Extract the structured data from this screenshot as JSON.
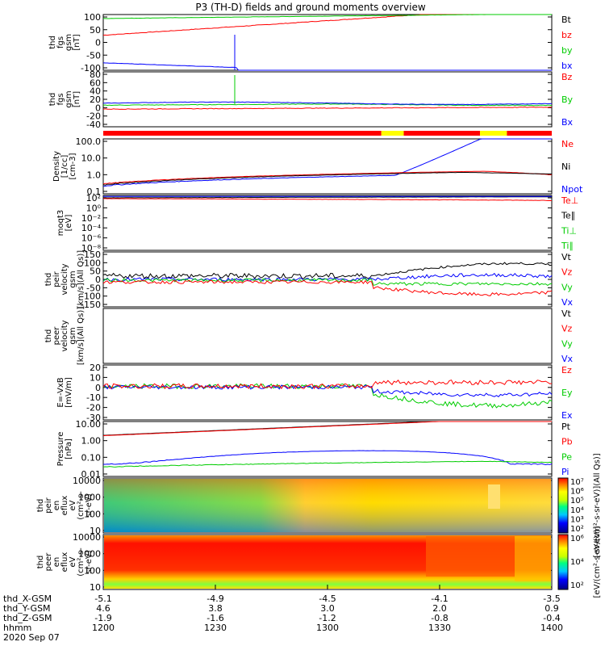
{
  "title": "P3 (TH-D) fields and ground moments overview",
  "colors": {
    "red": "#ff0000",
    "green": "#00cc00",
    "blue": "#0000ff",
    "black": "#000000",
    "yellow": "#ffff00"
  },
  "chart_data": {
    "type": "line",
    "time_range_hhmm": [
      "1200",
      "1400"
    ],
    "xaxis": {
      "rows": [
        {
          "label": "thd_X-GSM",
          "values": [
            "-5.1",
            "-4.9",
            "-4.5",
            "-4.1",
            "-3.5"
          ]
        },
        {
          "label": "thd_Y-GSM",
          "values": [
            "4.6",
            "3.8",
            "3.0",
            "2.0",
            "0.9"
          ]
        },
        {
          "label": "thd_Z-GSM",
          "values": [
            "-1.9",
            "-1.6",
            "-1.2",
            "-0.8",
            "-0.4"
          ]
        },
        {
          "label": "hhmm",
          "values": [
            "1200",
            "1230",
            "1300",
            "1330",
            "1400"
          ]
        }
      ],
      "date": "2020 Sep 07"
    },
    "panels": [
      {
        "id": "fgs_gsm",
        "ylabel": [
          "thd",
          "fgs",
          "gsm",
          "[nT]"
        ],
        "yticks": [
          "100",
          "50",
          "0",
          "-50",
          "-100"
        ],
        "ylim": [
          -100,
          110
        ],
        "legend": [
          {
            "name": "Bt",
            "color": "#000000"
          },
          {
            "name": "bz",
            "color": "#ff0000"
          },
          {
            "name": "by",
            "color": "#00cc00"
          },
          {
            "name": "bx",
            "color": "#0000ff"
          }
        ]
      },
      {
        "id": "fgs_dsl",
        "ylabel": [
          "thd",
          "fgs",
          "gsm",
          "[nT]"
        ],
        "yticks": [
          "80",
          "60",
          "40",
          "20",
          "0",
          "-20",
          "-40"
        ],
        "ylim": [
          -50,
          90
        ],
        "legend": [
          {
            "name": "Bz",
            "color": "#ff0000"
          },
          {
            "name": "By",
            "color": "#00cc00"
          },
          {
            "name": "Bx",
            "color": "#0000ff"
          }
        ]
      },
      {
        "id": "density",
        "ylabel": [
          "Density",
          "[1/cc]",
          "[cm-3]"
        ],
        "yticks": [
          "100.0",
          "10.0",
          "1.0",
          "0.1"
        ],
        "scale": "log",
        "ylim": [
          0.1,
          200
        ],
        "legend": [
          {
            "name": "Ne",
            "color": "#ff0000"
          },
          {
            "name": "Ni",
            "color": "#000000"
          },
          {
            "name": "Npot",
            "color": "#0000ff"
          }
        ]
      },
      {
        "id": "temperature",
        "ylabel": [
          "moqt3",
          "[eV]"
        ],
        "yticks": [
          "10²",
          "10⁰",
          "10⁻²",
          "10⁻⁴",
          "10⁻⁶",
          "10⁻⁸"
        ],
        "scale": "log",
        "legend": [
          {
            "name": "Te⊥",
            "color": "#ff0000"
          },
          {
            "name": "Te∥",
            "color": "#000000"
          },
          {
            "name": "Ti⊥",
            "color": "#00cc00"
          },
          {
            "name": "Ti∥",
            "color": "#00cc00"
          }
        ]
      },
      {
        "id": "ion_velocity",
        "ylabel": [
          "thd",
          "peir",
          "velocity",
          "gsm",
          "[km/s](All Qs)]"
        ],
        "yticks": [
          "150",
          "100",
          "50",
          "0",
          "-50",
          "-100",
          "-150"
        ],
        "ylim": [
          -150,
          160
        ],
        "legend": [
          {
            "name": "Vt",
            "color": "#000000"
          },
          {
            "name": "Vz",
            "color": "#ff0000"
          },
          {
            "name": "Vy",
            "color": "#00cc00"
          },
          {
            "name": "Vx",
            "color": "#0000ff"
          }
        ]
      },
      {
        "id": "electron_velocity",
        "ylabel": [
          "thd",
          "peer",
          "velocity",
          "gsm",
          "[km/s](All Qs)]"
        ],
        "yticks": [],
        "legend": [
          {
            "name": "Vt",
            "color": "#000000"
          },
          {
            "name": "Vz",
            "color": "#ff0000"
          },
          {
            "name": "Vy",
            "color": "#00cc00"
          },
          {
            "name": "Vx",
            "color": "#0000ff"
          }
        ]
      },
      {
        "id": "efield",
        "ylabel": [
          "E=-VxB",
          "[mV/m]"
        ],
        "yticks": [
          "20",
          "10",
          "0",
          "-10",
          "-20",
          "-30"
        ],
        "ylim": [
          -35,
          22
        ],
        "legend": [
          {
            "name": "Ez",
            "color": "#ff0000"
          },
          {
            "name": "Ey",
            "color": "#00cc00"
          },
          {
            "name": "Ex",
            "color": "#0000ff"
          }
        ]
      },
      {
        "id": "pressure",
        "ylabel": [
          "Pressure",
          "[nPa]"
        ],
        "yticks": [
          "10.00",
          "1.00",
          "0.10",
          "0.01"
        ],
        "scale": "log",
        "legend": [
          {
            "name": "Pt",
            "color": "#000000"
          },
          {
            "name": "Pb",
            "color": "#ff0000"
          },
          {
            "name": "Pe",
            "color": "#00cc00"
          },
          {
            "name": "Pi",
            "color": "#0000ff"
          }
        ]
      },
      {
        "id": "ion_spectrum",
        "ylabel": [
          "thd",
          "peir",
          "en",
          "eflux",
          "eV",
          "(cm²-s-",
          "sr-eV)"
        ],
        "yticks": [
          "10000",
          "1000",
          "100",
          "10"
        ],
        "scale": "log",
        "colorbar": {
          "ticks": [
            "10⁷",
            "10⁶",
            "10⁵",
            "10⁴",
            "10³",
            "10²"
          ],
          "label": "[eV/(cm²-s-sr-eV)](All Qs)]"
        }
      },
      {
        "id": "electron_spectrum",
        "ylabel": [
          "thd",
          "peer",
          "en",
          "eflux",
          "eV",
          "(cm²-s-",
          "sr-eV)"
        ],
        "yticks": [
          "10000",
          "1000",
          "100",
          "10"
        ],
        "scale": "log",
        "colorbar": {
          "ticks": [
            "10⁶",
            "10⁴",
            "10²"
          ],
          "label": "[eV/(cm²-s-sr-eV)]"
        }
      }
    ]
  }
}
